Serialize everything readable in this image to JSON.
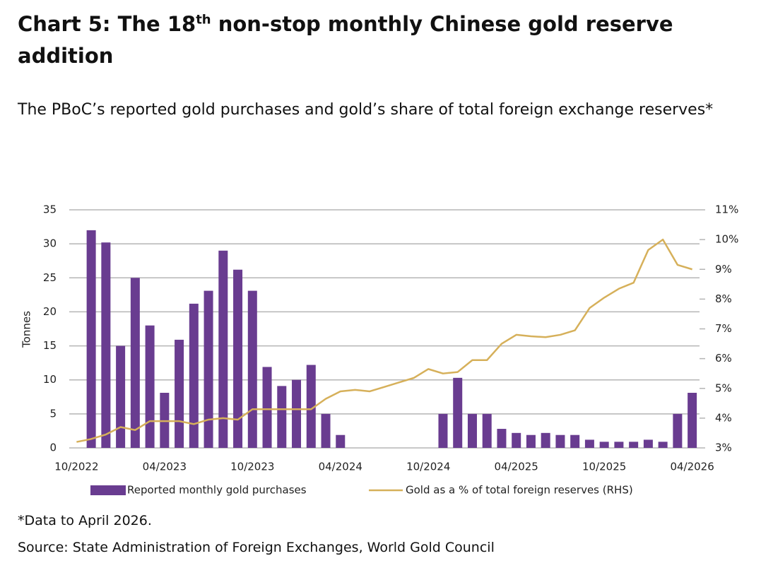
{
  "chart_data": {
    "type": "bar",
    "title": [
      "Chart 5:  The 18",
      "th",
      " non-stop monthly Chinese gold reserve addition"
    ],
    "subtitle": "The PBoC’s reported gold purchases and gold’s share of total foreign exchange reserves*",
    "y_label": "Tonnes",
    "footnote": "*Data to April 2026.",
    "source": "Source: State Administration of Foreign Exchanges, World Gold Council",
    "categories": [
      "10/2022",
      null,
      null,
      null,
      null,
      null,
      "04/2023",
      null,
      null,
      null,
      null,
      null,
      "10/2023",
      null,
      null,
      null,
      null,
      null,
      "04/2024",
      null,
      null,
      null,
      null,
      null,
      "10/2024",
      null,
      null,
      null,
      null,
      null,
      "04/2025",
      null,
      null,
      null,
      null,
      null,
      "10/2025",
      null,
      null,
      null,
      null,
      null,
      "04/2026"
    ],
    "series": [
      {
        "name": "Reported monthly gold purchases",
        "type": "bar",
        "color": "#693c90",
        "values": [
          0,
          32,
          30.2,
          15,
          25,
          18,
          8.1,
          15.9,
          21.2,
          23.1,
          29,
          26.2,
          23.1,
          11.9,
          9.1,
          10,
          12.2,
          5,
          1.9,
          0,
          0,
          0,
          0,
          0,
          0,
          5,
          10.3,
          5,
          5,
          2.8,
          2.2,
          1.9,
          2.2,
          1.9,
          1.9,
          1.2,
          0.9,
          0.9,
          0.9,
          1.2,
          0.9,
          5,
          8.1
        ]
      },
      {
        "name": "Gold as a % of total foreign reserves (RHS)",
        "type": "line",
        "axis": "y2",
        "color": "#d6b05a",
        "values": [
          3.2,
          3.3,
          3.45,
          3.7,
          3.6,
          3.9,
          3.9,
          3.9,
          3.8,
          3.95,
          4.0,
          3.95,
          4.3,
          4.3,
          4.3,
          4.3,
          4.3,
          4.65,
          4.9,
          4.95,
          4.9,
          5.05,
          5.2,
          5.35,
          5.65,
          5.5,
          5.55,
          5.95,
          5.95,
          6.5,
          6.8,
          6.75,
          6.72,
          6.8,
          6.95,
          7.7,
          8.05,
          8.35,
          8.55,
          9.65,
          10.0,
          9.15,
          9.0
        ]
      }
    ],
    "ylim": [
      0,
      35
    ],
    "yticks": [
      0,
      5,
      10,
      15,
      20,
      25,
      30,
      35
    ],
    "y2lim": [
      3,
      11
    ],
    "y2ticks": [
      {
        "value": 3,
        "label": "3%"
      },
      {
        "value": 4,
        "label": "4%"
      },
      {
        "value": 5,
        "label": "5%"
      },
      {
        "value": 6,
        "label": "6%"
      },
      {
        "value": 7,
        "label": "7%"
      },
      {
        "value": 8,
        "label": "8%"
      },
      {
        "value": 9,
        "label": "9%"
      },
      {
        "value": 10,
        "label": "10%"
      },
      {
        "value": 11,
        "label": "11%"
      }
    ],
    "grid": true,
    "legend": "bottom"
  }
}
